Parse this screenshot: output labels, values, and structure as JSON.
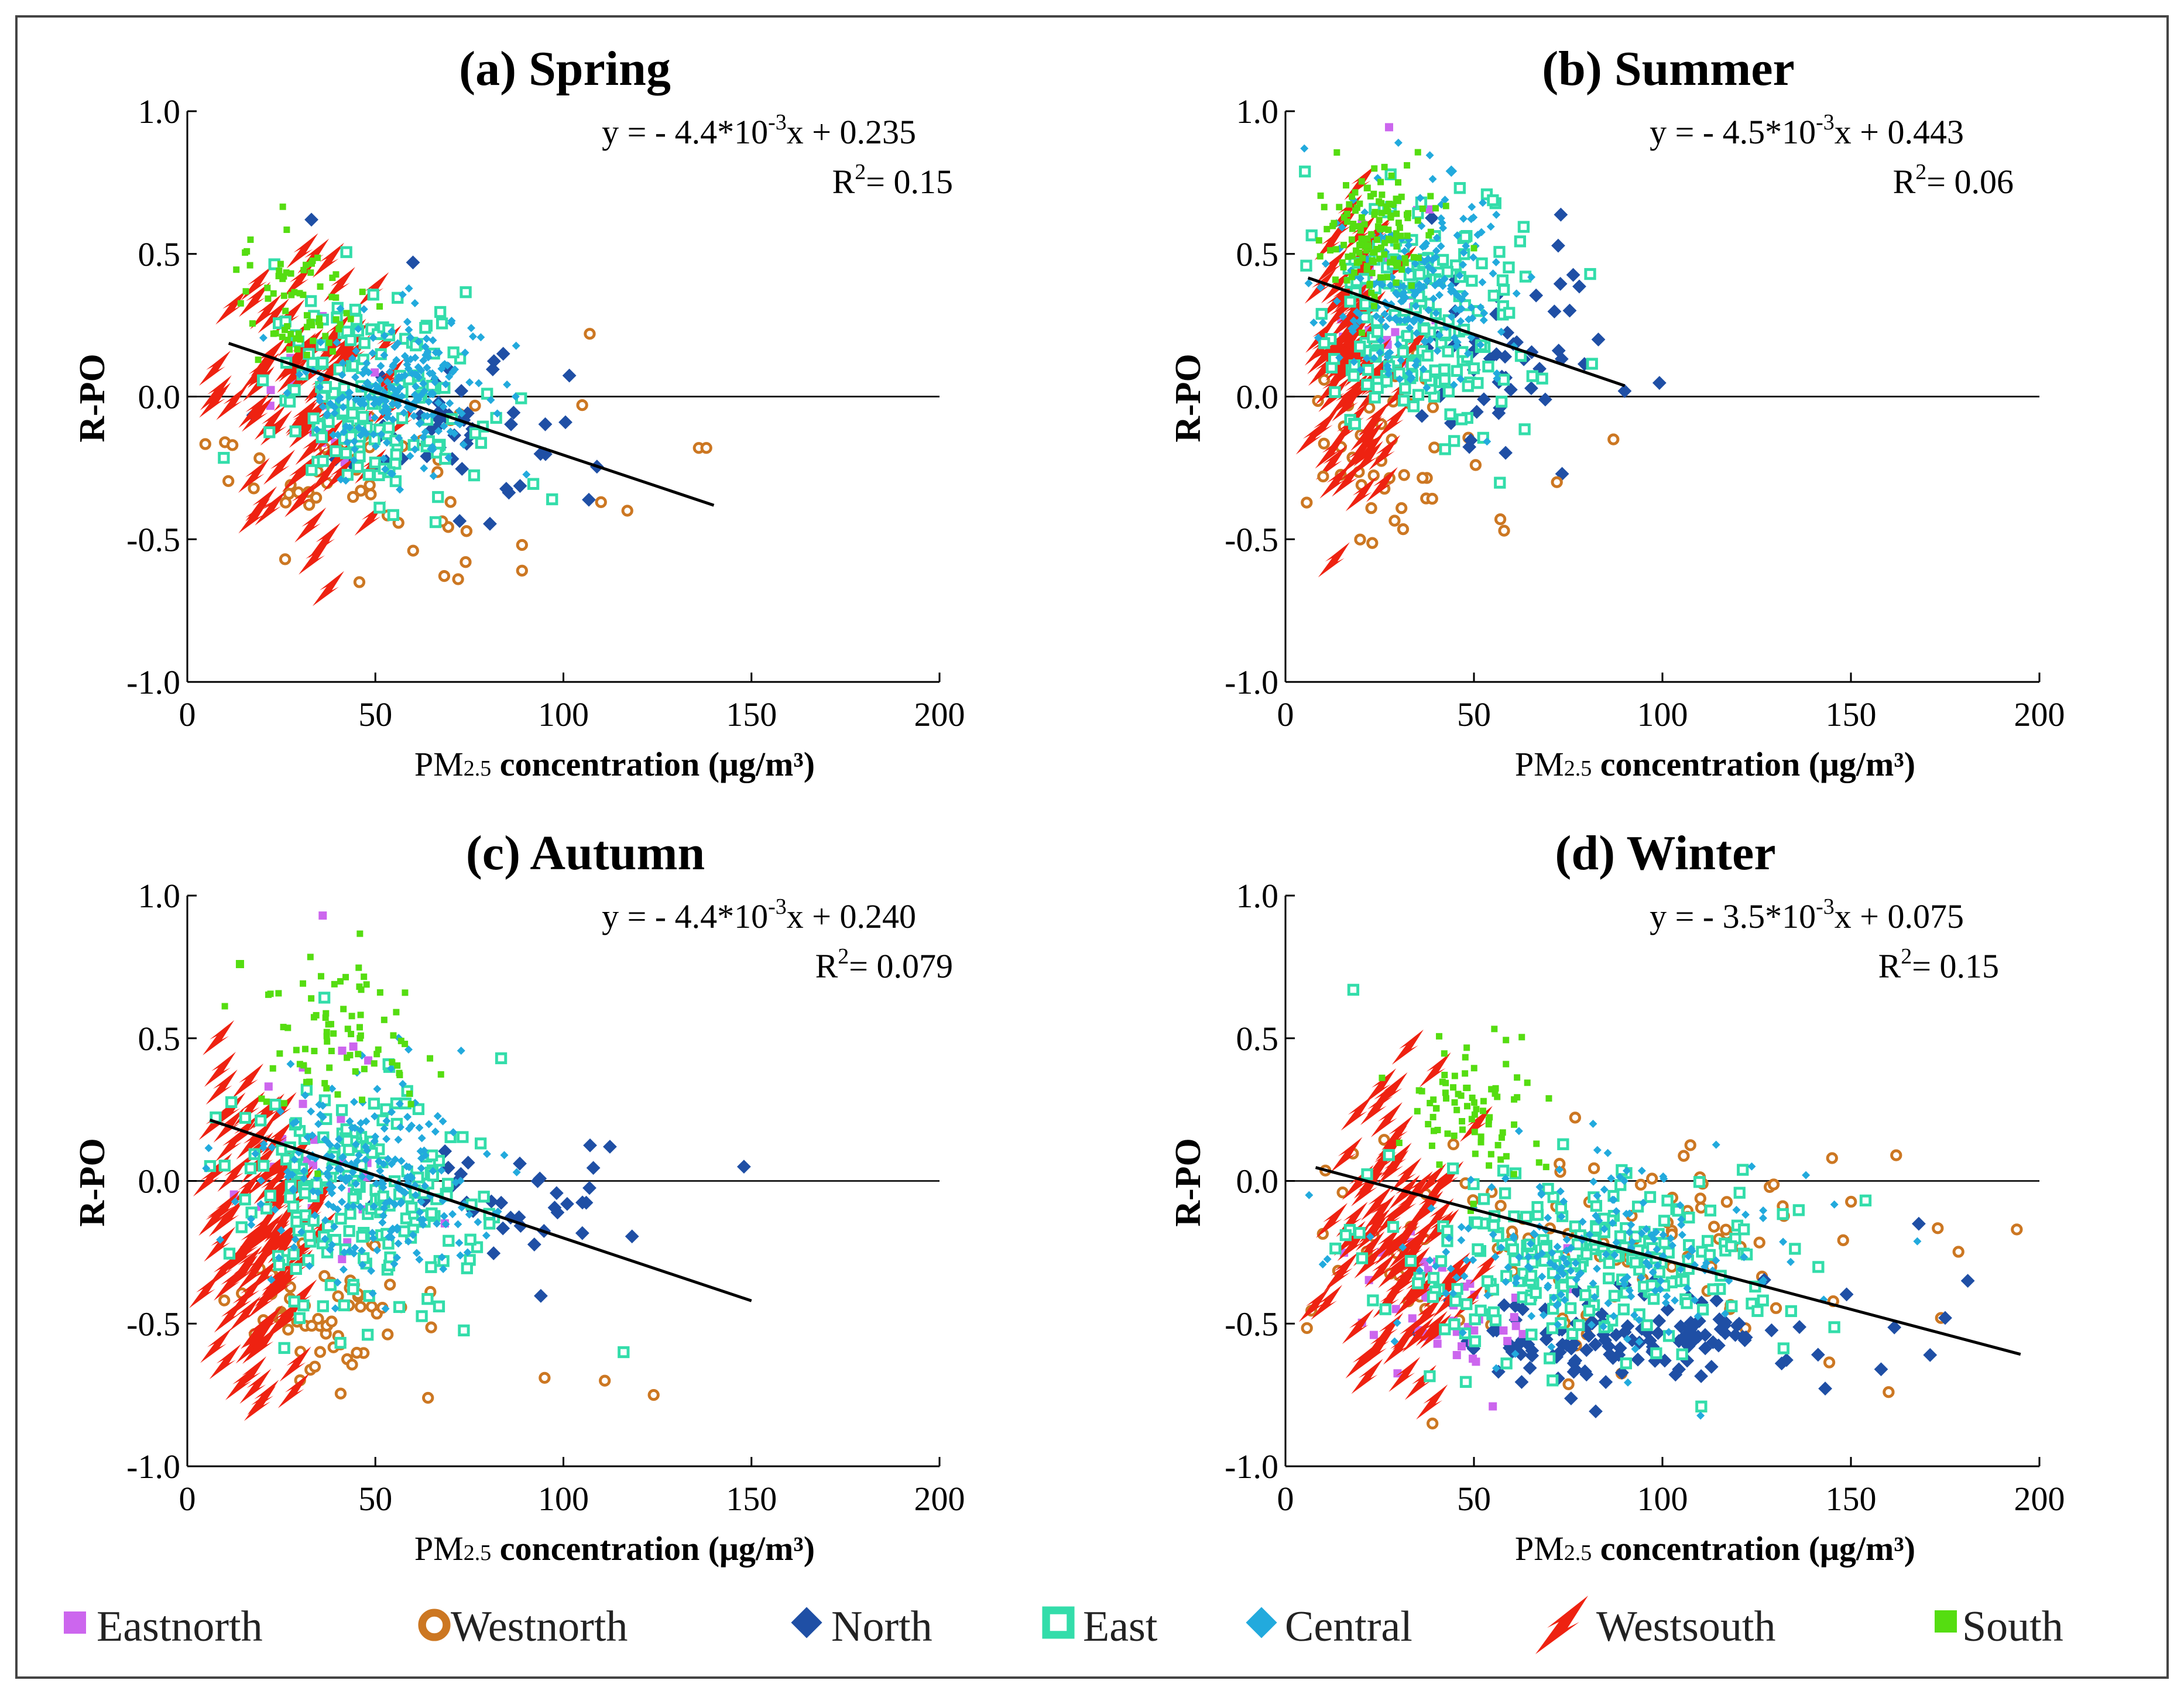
{
  "figure": {
    "x_label_prefix": "PM",
    "x_label_sub": "2.5",
    "x_label_rest": " concentration (μg/m³)",
    "y_label": "R-PO"
  },
  "legend": [
    {
      "name": "Eastnorth",
      "color": "#cc66ee",
      "marker": "square"
    },
    {
      "name": "Westnorth",
      "color": "#cc7722",
      "marker": "ring"
    },
    {
      "name": "North",
      "color": "#1f4fa5",
      "marker": "diamond"
    },
    {
      "name": "East",
      "color": "#33ddaa",
      "marker": "hollow-square"
    },
    {
      "name": "Central",
      "color": "#22aadd",
      "marker": "diamond"
    },
    {
      "name": "Westsouth",
      "color": "#ee2211",
      "marker": "bolt"
    },
    {
      "name": "South",
      "color": "#55dd11",
      "marker": "square"
    }
  ],
  "chart_data": [
    {
      "type": "scatter",
      "title": "(a) Spring",
      "xlabel": "PM2.5 concentration (μg/m³)",
      "ylabel": "R-PO",
      "xlim": [
        0,
        200
      ],
      "ylim": [
        -1.0,
        1.0
      ],
      "xticks": [
        "0",
        "50",
        "100",
        "150",
        "200"
      ],
      "yticks": [
        "1.0",
        "0.5",
        "0.0",
        "-0.5",
        "-1.0"
      ],
      "equation": "y = - 4.4*10",
      "equation_exp": "-3",
      "equation_tail": "x + 0.235",
      "r2_label": "R",
      "r2_exp": "2",
      "r2_value": "= 0.15",
      "fit": {
        "slope": -0.0044,
        "intercept": 0.235,
        "x_range": [
          11,
          140
        ]
      },
      "clusters": [
        {
          "region": "Eastnorth",
          "cx": 38,
          "cy": 0.05,
          "sx": 10,
          "sy": 0.15,
          "n": 20
        },
        {
          "region": "Westnorth",
          "cx": 45,
          "cy": -0.25,
          "sx": 16,
          "sy": 0.14,
          "n": 45
        },
        {
          "region": "North",
          "cx": 70,
          "cy": -0.12,
          "sx": 15,
          "sy": 0.15,
          "n": 50
        },
        {
          "region": "East",
          "cx": 50,
          "cy": 0.0,
          "sx": 14,
          "sy": 0.17,
          "n": 160
        },
        {
          "region": "Central",
          "cx": 55,
          "cy": 0.02,
          "sx": 12,
          "sy": 0.14,
          "n": 220
        },
        {
          "region": "Westsouth",
          "cx": 32,
          "cy": 0.0,
          "sx": 12,
          "sy": 0.22,
          "n": 80
        },
        {
          "region": "South",
          "cx": 30,
          "cy": 0.33,
          "sx": 8,
          "sy": 0.12,
          "n": 70
        }
      ],
      "points": [
        {
          "region": "Westnorth",
          "x": 107,
          "y": 0.22
        },
        {
          "region": "Westnorth",
          "x": 105,
          "y": -0.03
        },
        {
          "region": "Westnorth",
          "x": 136,
          "y": -0.18
        },
        {
          "region": "Westnorth",
          "x": 138,
          "y": -0.18
        },
        {
          "region": "Westnorth",
          "x": 110,
          "y": -0.37
        },
        {
          "region": "Westnorth",
          "x": 117,
          "y": -0.4
        },
        {
          "region": "Westnorth",
          "x": 89,
          "y": -0.52
        },
        {
          "region": "Westnorth",
          "x": 89,
          "y": -0.61
        },
        {
          "region": "Westnorth",
          "x": 72,
          "y": -0.64
        },
        {
          "region": "Westnorth",
          "x": 74,
          "y": -0.58
        },
        {
          "region": "Westnorth",
          "x": 26,
          "y": -0.57
        },
        {
          "region": "Westnorth",
          "x": 10,
          "y": -0.16
        },
        {
          "region": "Westnorth",
          "x": 12,
          "y": -0.17
        },
        {
          "region": "East",
          "x": 97,
          "y": -0.36
        },
        {
          "region": "East",
          "x": 66,
          "y": -0.44
        },
        {
          "region": "North",
          "x": 33,
          "y": 0.62
        },
        {
          "region": "North",
          "x": 60,
          "y": 0.47
        },
        {
          "region": "North",
          "x": 84,
          "y": 0.15
        }
      ]
    },
    {
      "type": "scatter",
      "title": "(b) Summer",
      "xlabel": "PM2.5 concentration (μg/m³)",
      "ylabel": "R-PO",
      "xlim": [
        0,
        200
      ],
      "ylim": [
        -1.0,
        1.0
      ],
      "xticks": [
        "0",
        "50",
        "100",
        "150",
        "200"
      ],
      "yticks": [
        "1.0",
        "0.5",
        "0.0",
        "-0.5",
        "-1.0"
      ],
      "equation": "y = - 4.5*10",
      "equation_exp": "-3",
      "equation_tail": "x + 0.443",
      "r2_label": "R",
      "r2_exp": "2",
      "r2_value": "= 0.06",
      "fit": {
        "slope": -0.0045,
        "intercept": 0.443,
        "x_range": [
          6,
          90
        ]
      },
      "clusters": [
        {
          "region": "Eastnorth",
          "cx": 30,
          "cy": 0.4,
          "sx": 8,
          "sy": 0.2,
          "n": 25
        },
        {
          "region": "Westnorth",
          "cx": 28,
          "cy": -0.2,
          "sx": 12,
          "sy": 0.15,
          "n": 40
        },
        {
          "region": "North",
          "cx": 60,
          "cy": 0.15,
          "sx": 12,
          "sy": 0.2,
          "n": 55
        },
        {
          "region": "East",
          "cx": 35,
          "cy": 0.25,
          "sx": 14,
          "sy": 0.22,
          "n": 180
        },
        {
          "region": "Central",
          "cx": 35,
          "cy": 0.35,
          "sx": 12,
          "sy": 0.18,
          "n": 200
        },
        {
          "region": "Westsouth",
          "cx": 18,
          "cy": 0.15,
          "sx": 6,
          "sy": 0.22,
          "n": 90
        },
        {
          "region": "South",
          "cx": 24,
          "cy": 0.58,
          "sx": 7,
          "sy": 0.11,
          "n": 140
        }
      ],
      "points": [
        {
          "region": "Westnorth",
          "x": 57,
          "y": -0.43
        },
        {
          "region": "Westnorth",
          "x": 58,
          "y": -0.47
        },
        {
          "region": "Westnorth",
          "x": 87,
          "y": -0.15
        },
        {
          "region": "Westnorth",
          "x": 72,
          "y": -0.3
        },
        {
          "region": "Westnorth",
          "x": 10,
          "y": -0.28
        },
        {
          "region": "Central",
          "x": 44,
          "y": 0.79
        },
        {
          "region": "North",
          "x": 83,
          "y": 0.2
        }
      ]
    },
    {
      "type": "scatter",
      "title": "(c) Autumn",
      "xlabel": "PM2.5 concentration (μg/m³)",
      "ylabel": "R-PO",
      "xlim": [
        0,
        200
      ],
      "ylim": [
        -1.0,
        1.0
      ],
      "xticks": [
        "0",
        "50",
        "100",
        "150",
        "200"
      ],
      "yticks": [
        "1.0",
        "0.5",
        "0.0",
        "-0.5",
        "-1.0"
      ],
      "equation": "y = - 4.4*10",
      "equation_exp": "-3",
      "equation_tail": "x + 0.240",
      "r2_label": "R",
      "r2_exp": "2",
      "r2_value": "= 0.079",
      "fit": {
        "slope": -0.0044,
        "intercept": 0.24,
        "x_range": [
          6,
          150
        ]
      },
      "clusters": [
        {
          "region": "Eastnorth",
          "cx": 38,
          "cy": 0.05,
          "sx": 12,
          "sy": 0.2,
          "n": 30
        },
        {
          "region": "Westnorth",
          "cx": 38,
          "cy": -0.45,
          "sx": 12,
          "sy": 0.12,
          "n": 60
        },
        {
          "region": "North",
          "cx": 90,
          "cy": -0.08,
          "sx": 15,
          "sy": 0.1,
          "n": 35
        },
        {
          "region": "East",
          "cx": 45,
          "cy": -0.05,
          "sx": 16,
          "sy": 0.2,
          "n": 200
        },
        {
          "region": "Central",
          "cx": 48,
          "cy": 0.0,
          "sx": 15,
          "sy": 0.18,
          "n": 240
        },
        {
          "region": "Westsouth",
          "cx": 20,
          "cy": -0.15,
          "sx": 9,
          "sy": 0.28,
          "n": 100
        },
        {
          "region": "South",
          "cx": 40,
          "cy": 0.45,
          "sx": 10,
          "sy": 0.15,
          "n": 80
        }
      ],
      "points": [
        {
          "region": "Eastnorth",
          "x": 36,
          "y": 0.93
        },
        {
          "region": "North",
          "x": 148,
          "y": 0.05
        },
        {
          "region": "Westnorth",
          "x": 95,
          "y": -0.69
        },
        {
          "region": "Westnorth",
          "x": 111,
          "y": -0.7
        },
        {
          "region": "Westnorth",
          "x": 124,
          "y": -0.75
        },
        {
          "region": "Westnorth",
          "x": 64,
          "y": -0.76
        },
        {
          "region": "East",
          "x": 116,
          "y": -0.6
        },
        {
          "region": "South",
          "x": 14,
          "y": 0.76
        }
      ]
    },
    {
      "type": "scatter",
      "title": "(d) Winter",
      "xlabel": "PM2.5 concentration (μg/m³)",
      "ylabel": "R-PO",
      "xlim": [
        0,
        200
      ],
      "ylim": [
        -1.0,
        1.0
      ],
      "xticks": [
        "0",
        "50",
        "100",
        "150",
        "200"
      ],
      "yticks": [
        "1.0",
        "0.5",
        "0.0",
        "-0.5",
        "-1.0"
      ],
      "equation": "y = - 3.5*10",
      "equation_exp": "-3",
      "equation_tail": "x + 0.075",
      "r2_label": "R",
      "r2_exp": "2",
      "r2_value": "= 0.15",
      "fit": {
        "slope": -0.0035,
        "intercept": 0.075,
        "x_range": [
          8,
          195
        ]
      },
      "clusters": [
        {
          "region": "Eastnorth",
          "cx": 45,
          "cy": -0.45,
          "sx": 15,
          "sy": 0.15,
          "n": 50
        },
        {
          "region": "Westnorth",
          "cx": 80,
          "cy": -0.2,
          "sx": 40,
          "sy": 0.2,
          "n": 110
        },
        {
          "region": "North",
          "cx": 95,
          "cy": -0.55,
          "sx": 25,
          "sy": 0.09,
          "n": 130
        },
        {
          "region": "East",
          "cx": 80,
          "cy": -0.3,
          "sx": 28,
          "sy": 0.17,
          "n": 230
        },
        {
          "region": "Central",
          "cx": 80,
          "cy": -0.25,
          "sx": 25,
          "sy": 0.16,
          "n": 200
        },
        {
          "region": "Westsouth",
          "cx": 30,
          "cy": -0.2,
          "sx": 10,
          "sy": 0.26,
          "n": 90
        },
        {
          "region": "South",
          "cx": 50,
          "cy": 0.25,
          "sx": 10,
          "sy": 0.14,
          "n": 80
        }
      ],
      "points": [
        {
          "region": "East",
          "x": 18,
          "y": 0.67
        },
        {
          "region": "Westnorth",
          "x": 162,
          "y": 0.09
        },
        {
          "region": "Westnorth",
          "x": 145,
          "y": 0.08
        },
        {
          "region": "Westnorth",
          "x": 194,
          "y": -0.17
        },
        {
          "region": "Westnorth",
          "x": 160,
          "y": -0.74
        },
        {
          "region": "Westnorth",
          "x": 39,
          "y": -0.85
        },
        {
          "region": "North",
          "x": 181,
          "y": -0.35
        },
        {
          "region": "North",
          "x": 175,
          "y": -0.48
        },
        {
          "region": "North",
          "x": 171,
          "y": -0.61
        },
        {
          "region": "North",
          "x": 168,
          "y": -0.15
        },
        {
          "region": "North",
          "x": 158,
          "y": -0.66
        },
        {
          "region": "Eastnorth",
          "x": 55,
          "y": -0.79
        }
      ]
    }
  ]
}
